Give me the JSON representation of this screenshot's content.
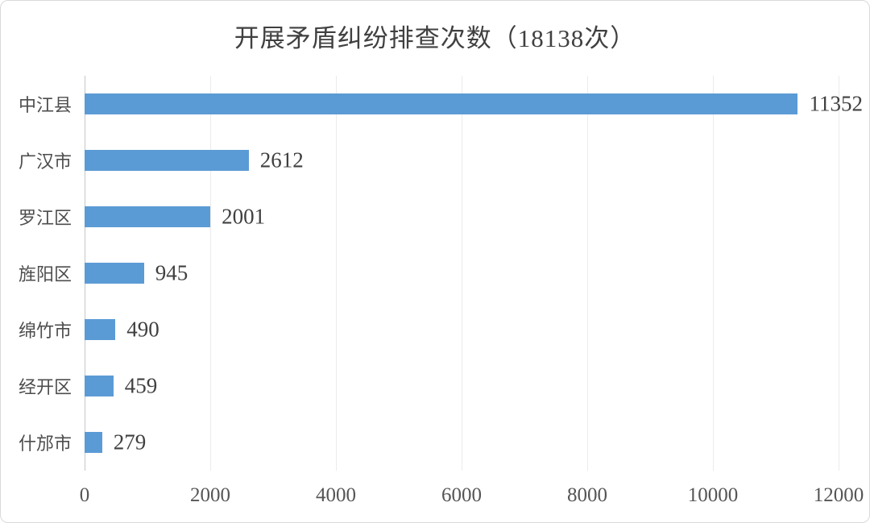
{
  "chart_data": {
    "type": "bar",
    "orientation": "horizontal",
    "title": "开展矛盾纠纷排查次数（18138次）",
    "total_shown_in_title": 18138,
    "unit": "次",
    "categories": [
      "中江县",
      "广汉市",
      "罗江区",
      "旌阳区",
      "绵竹市",
      "经开区",
      "什邡市"
    ],
    "values": [
      11352,
      2612,
      2001,
      945,
      490,
      459,
      279
    ],
    "data_labels_shown": true,
    "xlim": [
      0,
      12000
    ],
    "x_ticks": [
      "0",
      "2000",
      "4000",
      "6000",
      "8000",
      "10000",
      "12000"
    ],
    "x_tick_values": [
      0,
      2000,
      4000,
      6000,
      8000,
      10000,
      12000
    ],
    "grid": "vertical gridlines at each x tick",
    "legend": "none",
    "colors": {
      "bar": "#5B9BD5",
      "title_text": "#404040",
      "value_label_text": "#404040",
      "category_text": "#4D4D4D",
      "tick_text": "#555555",
      "axis_line": "#C6C6C6",
      "gridline": "#EBEBEB",
      "frame_border": "#D9D9D9",
      "background": "#FFFFFF"
    }
  }
}
